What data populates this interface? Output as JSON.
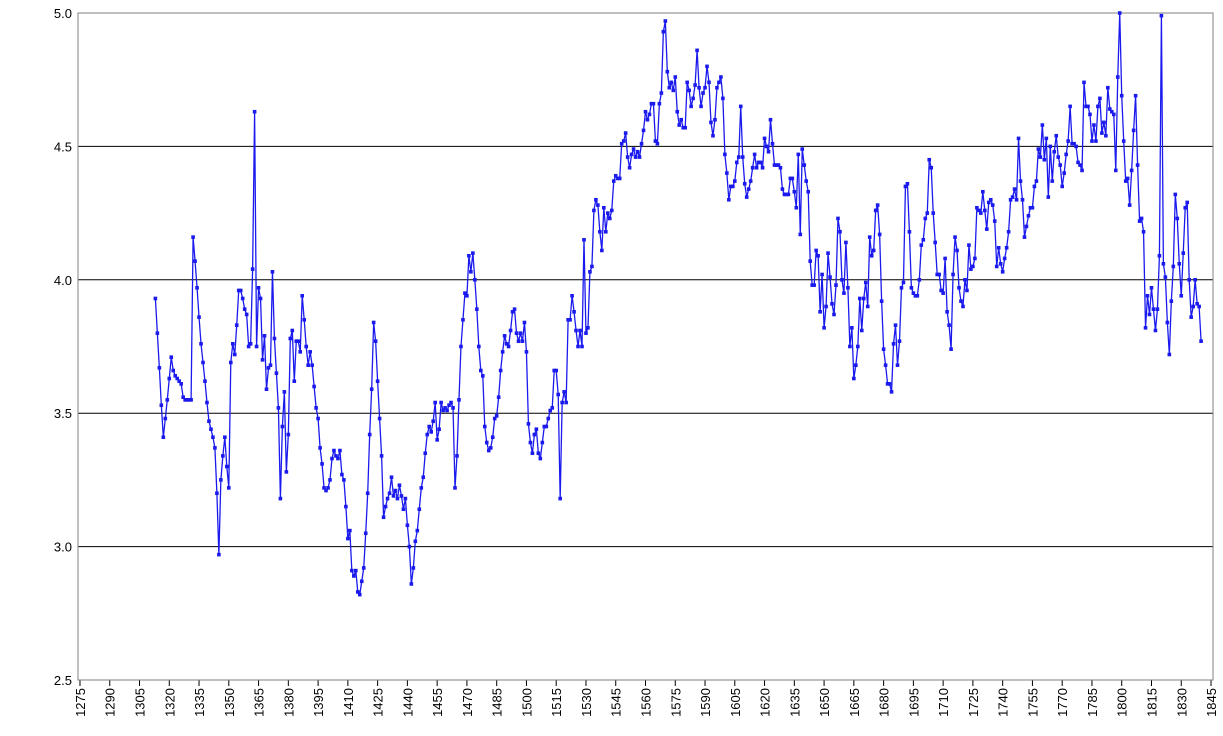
{
  "chart_data": {
    "type": "line",
    "grid": true,
    "xlim": [
      1274,
      1846
    ],
    "xticks": [
      1275,
      1290,
      1305,
      1320,
      1335,
      1350,
      1365,
      1380,
      1395,
      1410,
      1425,
      1440,
      1455,
      1470,
      1485,
      1500,
      1515,
      1530,
      1545,
      1560,
      1575,
      1590,
      1605,
      1620,
      1635,
      1650,
      1665,
      1680,
      1695,
      1710,
      1725,
      1740,
      1755,
      1770,
      1785,
      1800,
      1815,
      1830,
      1845
    ],
    "ylim": [
      2.5,
      5
    ],
    "yticks": [
      {
        "value": 2.5,
        "label": "2.5"
      },
      {
        "value": 3,
        "label": "3.0"
      },
      {
        "value": 3.5,
        "label": "3.5"
      },
      {
        "value": 4,
        "label": "4.0"
      },
      {
        "value": 4.5,
        "label": "4.5"
      },
      {
        "value": 5,
        "label": "5.0"
      }
    ],
    "x": [
      1313,
      1314,
      1315,
      1316,
      1317,
      1318,
      1319,
      1320,
      1321,
      1322,
      1323,
      1324,
      1325,
      1326,
      1327,
      1328,
      1329,
      1330,
      1331,
      1332,
      1333,
      1334,
      1335,
      1336,
      1337,
      1338,
      1339,
      1340,
      1341,
      1342,
      1343,
      1344,
      1345,
      1346,
      1347,
      1348,
      1349,
      1350,
      1351,
      1352,
      1353,
      1354,
      1355,
      1356,
      1357,
      1358,
      1359,
      1360,
      1361,
      1362,
      1363,
      1364,
      1365,
      1366,
      1367,
      1368,
      1369,
      1370,
      1371,
      1372,
      1373,
      1374,
      1375,
      1376,
      1377,
      1378,
      1379,
      1380,
      1381,
      1382,
      1383,
      1384,
      1385,
      1386,
      1387,
      1388,
      1389,
      1390,
      1391,
      1392,
      1393,
      1394,
      1395,
      1396,
      1397,
      1398,
      1399,
      1400,
      1401,
      1402,
      1403,
      1404,
      1405,
      1406,
      1407,
      1408,
      1409,
      1410,
      1411,
      1412,
      1413,
      1414,
      1415,
      1416,
      1417,
      1418,
      1419,
      1420,
      1421,
      1422,
      1423,
      1424,
      1425,
      1426,
      1427,
      1428,
      1429,
      1430,
      1431,
      1432,
      1433,
      1434,
      1435,
      1436,
      1437,
      1438,
      1439,
      1440,
      1441,
      1442,
      1443,
      1444,
      1445,
      1446,
      1447,
      1448,
      1449,
      1450,
      1451,
      1452,
      1453,
      1454,
      1455,
      1456,
      1457,
      1458,
      1459,
      1460,
      1461,
      1462,
      1463,
      1464,
      1465,
      1466,
      1467,
      1468,
      1469,
      1470,
      1471,
      1472,
      1473,
      1474,
      1475,
      1476,
      1477,
      1478,
      1479,
      1480,
      1481,
      1482,
      1483,
      1484,
      1485,
      1486,
      1487,
      1488,
      1489,
      1490,
      1491,
      1492,
      1493,
      1494,
      1495,
      1496,
      1497,
      1498,
      1499,
      1500,
      1501,
      1502,
      1503,
      1504,
      1505,
      1506,
      1507,
      1508,
      1509,
      1510,
      1511,
      1512,
      1513,
      1514,
      1515,
      1516,
      1517,
      1518,
      1519,
      1520,
      1521,
      1522,
      1523,
      1524,
      1525,
      1526,
      1527,
      1528,
      1529,
      1530,
      1531,
      1532,
      1533,
      1534,
      1535,
      1536,
      1537,
      1538,
      1539,
      1540,
      1541,
      1542,
      1543,
      1544,
      1545,
      1546,
      1547,
      1548,
      1549,
      1550,
      1551,
      1552,
      1553,
      1554,
      1555,
      1556,
      1557,
      1558,
      1559,
      1560,
      1561,
      1562,
      1563,
      1564,
      1565,
      1566,
      1567,
      1568,
      1569,
      1570,
      1571,
      1572,
      1573,
      1574,
      1575,
      1576,
      1577,
      1578,
      1579,
      1580,
      1581,
      1582,
      1583,
      1584,
      1585,
      1586,
      1587,
      1588,
      1589,
      1590,
      1591,
      1592,
      1593,
      1594,
      1595,
      1596,
      1597,
      1598,
      1599,
      1600,
      1601,
      1602,
      1603,
      1604,
      1605,
      1606,
      1607,
      1608,
      1609,
      1610,
      1611,
      1612,
      1613,
      1614,
      1615,
      1616,
      1617,
      1618,
      1619,
      1620,
      1621,
      1622,
      1623,
      1624,
      1625,
      1626,
      1627,
      1628,
      1629,
      1630,
      1631,
      1632,
      1633,
      1634,
      1635,
      1636,
      1637,
      1638,
      1639,
      1640,
      1641,
      1642,
      1643,
      1644,
      1645,
      1646,
      1647,
      1648,
      1649,
      1650,
      1651,
      1652,
      1653,
      1654,
      1655,
      1656,
      1657,
      1658,
      1659,
      1660,
      1661,
      1662,
      1663,
      1664,
      1665,
      1666,
      1667,
      1668,
      1669,
      1670,
      1671,
      1672,
      1673,
      1674,
      1675,
      1676,
      1677,
      1678,
      1679,
      1680,
      1681,
      1682,
      1683,
      1684,
      1685,
      1686,
      1687,
      1688,
      1689,
      1690,
      1691,
      1692,
      1693,
      1694,
      1695,
      1696,
      1697,
      1698,
      1699,
      1700,
      1701,
      1702,
      1703,
      1704,
      1705,
      1706,
      1707,
      1708,
      1709,
      1710,
      1711,
      1712,
      1713,
      1714,
      1715,
      1716,
      1717,
      1718,
      1719,
      1720,
      1721,
      1722,
      1723,
      1724,
      1725,
      1726,
      1727,
      1728,
      1729,
      1730,
      1731,
      1732,
      1733,
      1734,
      1735,
      1736,
      1737,
      1738,
      1739,
      1740,
      1741,
      1742,
      1743,
      1744,
      1745,
      1746,
      1747,
      1748,
      1749,
      1750,
      1751,
      1752,
      1753,
      1754,
      1755,
      1756,
      1757,
      1758,
      1759,
      1760,
      1761,
      1762,
      1763,
      1764,
      1765,
      1766,
      1767,
      1768,
      1769,
      1770,
      1771,
      1772,
      1773,
      1774,
      1775,
      1776,
      1777,
      1778,
      1779,
      1780,
      1781,
      1782,
      1783,
      1784,
      1785,
      1786,
      1787,
      1788,
      1789,
      1790,
      1791,
      1792,
      1793,
      1794,
      1795,
      1796,
      1797,
      1798,
      1799,
      1800,
      1801,
      1802,
      1803,
      1804,
      1805,
      1806,
      1807,
      1808,
      1809,
      1810,
      1811,
      1812,
      1813,
      1814,
      1815,
      1816,
      1817,
      1818,
      1819,
      1820,
      1821,
      1822,
      1823,
      1824,
      1825,
      1826,
      1827,
      1828,
      1829,
      1830,
      1831,
      1832,
      1833,
      1834,
      1835,
      1836,
      1837,
      1838,
      1839,
      1840
    ],
    "series": [
      {
        "color": "#1a1aee",
        "values": [
          3.93,
          3.8,
          3.67,
          3.53,
          3.41,
          3.48,
          3.55,
          3.63,
          3.71,
          3.66,
          3.64,
          3.63,
          3.62,
          3.61,
          3.56,
          3.55,
          3.55,
          3.55,
          3.55,
          4.16,
          4.07,
          3.97,
          3.86,
          3.76,
          3.69,
          3.62,
          3.54,
          3.47,
          3.44,
          3.41,
          3.37,
          3.2,
          2.97,
          3.25,
          3.34,
          3.41,
          3.3,
          3.22,
          3.69,
          3.76,
          3.72,
          3.83,
          3.96,
          3.96,
          3.93,
          3.89,
          3.87,
          3.75,
          3.76,
          4.04,
          4.63,
          3.75,
          3.97,
          3.93,
          3.7,
          3.79,
          3.59,
          3.67,
          3.68,
          4.03,
          3.78,
          3.65,
          3.52,
          3.18,
          3.45,
          3.58,
          3.28,
          3.42,
          3.78,
          3.81,
          3.62,
          3.77,
          3.77,
          3.73,
          3.94,
          3.85,
          3.75,
          3.68,
          3.73,
          3.68,
          3.6,
          3.52,
          3.48,
          3.37,
          3.31,
          3.22,
          3.21,
          3.22,
          3.25,
          3.33,
          3.36,
          3.34,
          3.33,
          3.36,
          3.27,
          3.25,
          3.15,
          3.03,
          3.06,
          2.91,
          2.89,
          2.91,
          2.83,
          2.82,
          2.87,
          2.92,
          3.05,
          3.2,
          3.42,
          3.59,
          3.84,
          3.77,
          3.62,
          3.48,
          3.34,
          3.11,
          3.15,
          3.18,
          3.2,
          3.26,
          3.19,
          3.21,
          3.18,
          3.23,
          3.19,
          3.14,
          3.18,
          3.08,
          3.0,
          2.86,
          2.92,
          3.02,
          3.06,
          3.14,
          3.22,
          3.26,
          3.35,
          3.42,
          3.45,
          3.43,
          3.47,
          3.54,
          3.4,
          3.44,
          3.54,
          3.51,
          3.52,
          3.51,
          3.53,
          3.54,
          3.52,
          3.22,
          3.34,
          3.55,
          3.75,
          3.85,
          3.95,
          3.94,
          4.09,
          4.03,
          4.1,
          4.0,
          3.89,
          3.75,
          3.66,
          3.64,
          3.45,
          3.39,
          3.36,
          3.37,
          3.41,
          3.48,
          3.49,
          3.56,
          3.66,
          3.73,
          3.79,
          3.76,
          3.75,
          3.81,
          3.88,
          3.89,
          3.8,
          3.77,
          3.8,
          3.77,
          3.84,
          3.73,
          3.46,
          3.39,
          3.35,
          3.42,
          3.44,
          3.35,
          3.33,
          3.39,
          3.45,
          3.45,
          3.48,
          3.51,
          3.52,
          3.66,
          3.66,
          3.57,
          3.18,
          3.54,
          3.58,
          3.54,
          3.85,
          3.85,
          3.94,
          3.88,
          3.81,
          3.75,
          3.81,
          3.75,
          4.15,
          3.8,
          3.82,
          4.03,
          4.05,
          4.26,
          4.3,
          4.28,
          4.18,
          4.11,
          4.27,
          4.18,
          4.25,
          4.23,
          4.26,
          4.37,
          4.39,
          4.38,
          4.38,
          4.51,
          4.52,
          4.55,
          4.46,
          4.42,
          4.47,
          4.49,
          4.46,
          4.48,
          4.46,
          4.51,
          4.56,
          4.63,
          4.6,
          4.62,
          4.66,
          4.66,
          4.52,
          4.51,
          4.66,
          4.7,
          4.93,
          4.97,
          4.78,
          4.72,
          4.74,
          4.71,
          4.76,
          4.63,
          4.58,
          4.6,
          4.57,
          4.57,
          4.74,
          4.71,
          4.65,
          4.68,
          4.73,
          4.86,
          4.72,
          4.65,
          4.7,
          4.72,
          4.8,
          4.74,
          4.59,
          4.54,
          4.6,
          4.72,
          4.74,
          4.76,
          4.68,
          4.47,
          4.4,
          4.3,
          4.35,
          4.35,
          4.37,
          4.44,
          4.46,
          4.65,
          4.46,
          4.36,
          4.31,
          4.34,
          4.37,
          4.42,
          4.47,
          4.42,
          4.44,
          4.44,
          4.42,
          4.53,
          4.5,
          4.48,
          4.6,
          4.51,
          4.43,
          4.43,
          4.43,
          4.42,
          4.34,
          4.32,
          4.32,
          4.32,
          4.38,
          4.38,
          4.33,
          4.27,
          4.47,
          4.17,
          4.49,
          4.43,
          4.37,
          4.33,
          4.07,
          3.98,
          3.98,
          4.11,
          4.09,
          3.88,
          4.02,
          3.82,
          3.9,
          4.1,
          4.01,
          3.91,
          3.87,
          3.98,
          4.23,
          4.18,
          4.0,
          3.95,
          4.14,
          3.97,
          3.75,
          3.82,
          3.63,
          3.68,
          3.75,
          3.93,
          3.81,
          3.93,
          3.99,
          3.9,
          4.16,
          4.09,
          4.11,
          4.26,
          4.28,
          4.17,
          3.92,
          3.74,
          3.68,
          3.61,
          3.61,
          3.58,
          3.76,
          3.83,
          3.68,
          3.77,
          3.97,
          3.99,
          4.35,
          4.36,
          4.18,
          3.97,
          3.95,
          3.94,
          3.94,
          4.0,
          4.13,
          4.15,
          4.23,
          4.25,
          4.45,
          4.42,
          4.25,
          4.14,
          4.02,
          4.02,
          3.96,
          3.95,
          4.08,
          3.88,
          3.83,
          3.74,
          4.02,
          4.16,
          4.11,
          3.97,
          3.92,
          3.9,
          4.0,
          3.96,
          4.13,
          4.04,
          4.05,
          4.08,
          4.27,
          4.26,
          4.25,
          4.33,
          4.26,
          4.19,
          4.29,
          4.3,
          4.28,
          4.22,
          4.05,
          4.12,
          4.06,
          4.03,
          4.08,
          4.12,
          4.18,
          4.3,
          4.31,
          4.34,
          4.3,
          4.53,
          4.37,
          4.3,
          4.16,
          4.2,
          4.24,
          4.27,
          4.27,
          4.35,
          4.37,
          4.49,
          4.46,
          4.58,
          4.45,
          4.53,
          4.31,
          4.5,
          4.37,
          4.48,
          4.54,
          4.46,
          4.43,
          4.35,
          4.4,
          4.47,
          4.52,
          4.65,
          4.51,
          4.51,
          4.5,
          4.44,
          4.43,
          4.41,
          4.74,
          4.65,
          4.65,
          4.62,
          4.52,
          4.58,
          4.52,
          4.65,
          4.68,
          4.55,
          4.59,
          4.54,
          4.72,
          4.64,
          4.63,
          4.62,
          4.41,
          4.76,
          5.0,
          4.69,
          4.52,
          4.37,
          4.38,
          4.28,
          4.41,
          4.56,
          4.69,
          4.43,
          4.22,
          4.23,
          4.18,
          3.82,
          3.94,
          3.87,
          3.97,
          3.89,
          3.81,
          3.89,
          4.09,
          4.99,
          4.06,
          4.01,
          3.84,
          3.72,
          3.92,
          4.05,
          4.32,
          4.23,
          4.06,
          3.94,
          4.1,
          4.27,
          4.29,
          4.0,
          3.86,
          3.9,
          4.0,
          3.91,
          3.9,
          3.77
        ]
      }
    ]
  }
}
